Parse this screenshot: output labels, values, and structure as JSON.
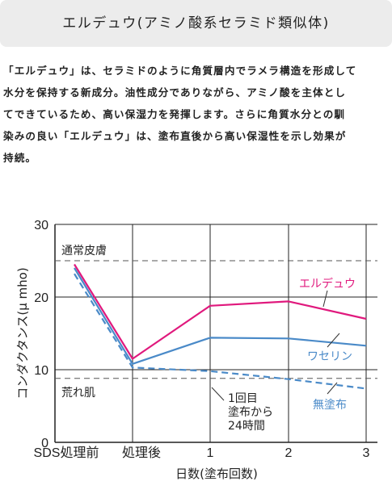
{
  "header": {
    "title": "エルデュウ(アミノ酸系セラミド類似体)"
  },
  "description": [
    "「エルデュウ」は、セラミドのように角質層内でラメラ構造を形成して",
    "水分を保持する新成分。油性成分でありながら、アミノ酸を主体とし",
    "てできているため、高い保湿力を発揮します。さらに角質水分との馴",
    "染みの良い「エルデュウ」は、塗布直後から高い保湿性を示し効果が",
    "持続。"
  ],
  "chart_data": {
    "type": "line",
    "ylabel": "コンダクタンス(μ mho)",
    "xlabel": "日数(塗布回数)",
    "categories": [
      "SDS処理前",
      "処理後",
      "1",
      "2",
      "3"
    ],
    "ylim": [
      0,
      30
    ],
    "yticks": [
      "0",
      "10",
      "20",
      "30"
    ],
    "grid": true,
    "series": [
      {
        "name": "エルデュウ",
        "color": "#e0197d",
        "style": "solid",
        "values": [
          24.5,
          11.5,
          18.8,
          19.4,
          17.0
        ]
      },
      {
        "name": "ワセリン",
        "color": "#4a8ac8",
        "style": "solid",
        "values": [
          24.0,
          10.8,
          14.4,
          14.3,
          13.3
        ]
      },
      {
        "name": "無塗布",
        "color": "#4a8ac8",
        "style": "dashed",
        "values": [
          23.2,
          10.3,
          9.8,
          8.7,
          7.4
        ]
      }
    ],
    "reference_lines": [
      {
        "label": "通常皮膚",
        "value": 25
      },
      {
        "label": "荒れ肌",
        "value": 8.8
      }
    ],
    "annotation": {
      "lines": [
        "1回目",
        "塗布から",
        "24時間"
      ]
    }
  }
}
